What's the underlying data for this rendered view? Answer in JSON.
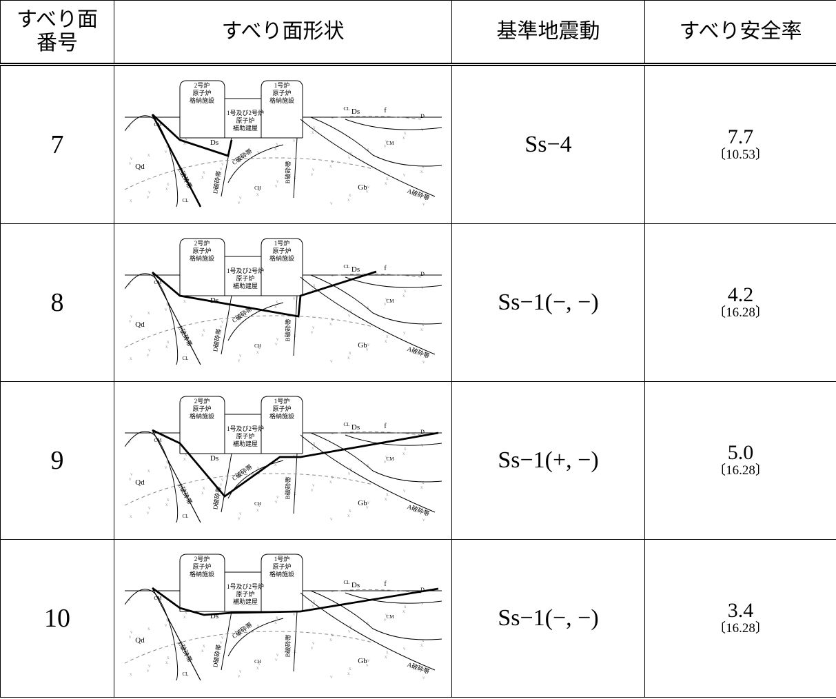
{
  "table": {
    "header": [
      [
        "すべり面",
        "番号"
      ],
      "すべり面形状",
      "基準地震動",
      "すべり安全率"
    ],
    "rows": [
      {
        "no": "7",
        "ground_motion": "Ss−4",
        "safety_factor": "7.7",
        "reference": "〔10.53〕"
      },
      {
        "no": "8",
        "ground_motion": "Ss−1(−, −)",
        "safety_factor": "4.2",
        "reference": "〔16.28〕"
      },
      {
        "no": "9",
        "ground_motion": "Ss−1(+, −)",
        "safety_factor": "5.0",
        "reference": "〔16.28〕"
      },
      {
        "no": "10",
        "ground_motion": "Ss−1(−, −)",
        "safety_factor": "3.4",
        "reference": "〔16.28〕"
      }
    ]
  },
  "diagram_labels": {
    "unit2": [
      "2号炉",
      "原子炉",
      "格納施設"
    ],
    "unit1": [
      "1号炉",
      "原子炉",
      "格納施設"
    ],
    "aux": [
      "1号及び2号炉",
      "原子炉",
      "補助建屋"
    ],
    "ds": "Ds",
    "qd": "Qd",
    "gb": "Gb",
    "cm": "CM",
    "cl": "CL",
    "ch": "CH",
    "d": "D",
    "f": "f",
    "e_zone": "E破砕帯",
    "d_zone": "D破砕帯",
    "c_zone": "C破砕帯",
    "b_zone": "B破砕帯",
    "a_zone": "A破砕帯"
  }
}
